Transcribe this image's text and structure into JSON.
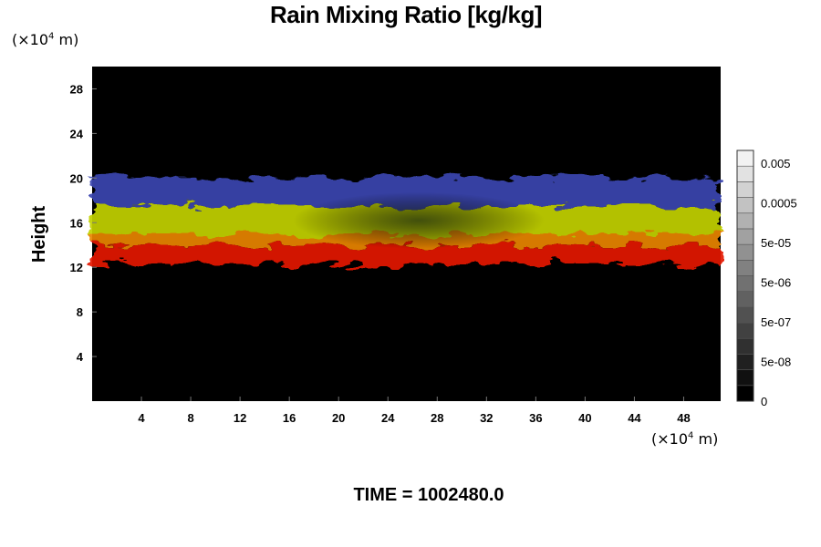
{
  "chart_data": {
    "type": "heatmap",
    "title": "Rain Mixing Ratio [kg/kg]",
    "ylabel": "Height",
    "xlabel": "",
    "x_unit_prefix": "(×10",
    "x_unit_exp": "4",
    "x_unit_suffix": " m)",
    "y_unit_prefix": "(×10",
    "y_unit_exp": "4",
    "y_unit_suffix": " m)",
    "x_ticks": [
      "4",
      "8",
      "12",
      "16",
      "20",
      "24",
      "28",
      "32",
      "36",
      "40",
      "44",
      "48"
    ],
    "x_tick_values": [
      4,
      8,
      12,
      16,
      20,
      24,
      28,
      32,
      36,
      40,
      44,
      48
    ],
    "y_ticks": [
      "4",
      "8",
      "12",
      "16",
      "20",
      "24",
      "28"
    ],
    "y_tick_values": [
      4,
      8,
      12,
      16,
      20,
      24,
      28
    ],
    "xlim": [
      0,
      51
    ],
    "ylim": [
      0,
      30
    ],
    "layers": [
      {
        "color": "#3b45b0",
        "y_range": [
          17.5,
          20.0
        ]
      },
      {
        "color": "#c2d100",
        "y_range": [
          15.0,
          17.5
        ]
      },
      {
        "color": "#e88400",
        "y_range": [
          14.0,
          15.0
        ]
      },
      {
        "color": "#e41400",
        "y_range": [
          12.3,
          14.0
        ]
      }
    ],
    "colorbar": {
      "labels": [
        "0.005",
        "0.0005",
        "5e-05",
        "5e-06",
        "5e-07",
        "5e-08",
        "0"
      ],
      "levels": 16,
      "colors": [
        "#000000",
        "#f2f2f2"
      ]
    },
    "background_color": "#000000"
  },
  "footer": {
    "time_label": "TIME = 1002480.0"
  }
}
